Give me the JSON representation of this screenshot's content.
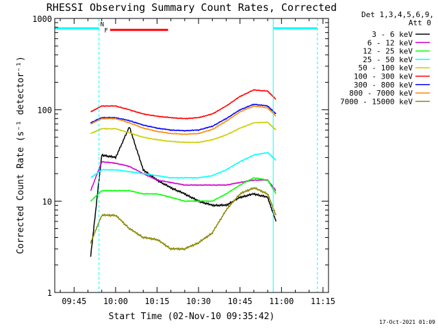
{
  "chart_data": {
    "type": "line",
    "title": "RHESSI Observing Summary Count Rates, Corrected",
    "xlabel": "Start Time (02-Nov-10 09:35:42)",
    "ylabel": "Corrected Count Rate (s⁻¹ detector⁻¹)",
    "y_scale": "log",
    "xlim": [
      "09:38:00",
      "11:17:00"
    ],
    "ylim": [
      1,
      1000
    ],
    "x_ticks": [
      "09:45",
      "10:00",
      "10:15",
      "10:30",
      "10:45",
      "11:00",
      "11:15"
    ],
    "y_ticks": [
      {
        "value": 1,
        "label": "1"
      },
      {
        "value": 10,
        "label": "10"
      },
      {
        "value": 100,
        "label": "100"
      },
      {
        "value": 1000,
        "label": "1000"
      }
    ],
    "legend_header": [
      "Det 1,3,4,5,6,9,",
      "Att 0"
    ],
    "legend_placement": "right",
    "x": [
      "09:51",
      "09:55",
      "10:00",
      "10:05",
      "10:10",
      "10:15",
      "10:20",
      "10:25",
      "10:30",
      "10:35",
      "10:40",
      "10:45",
      "10:50",
      "10:55",
      "10:58"
    ],
    "series": [
      {
        "name": "3 - 6 keV",
        "color": "#000000",
        "values": [
          2.5,
          32,
          30,
          65,
          22,
          17,
          14,
          12,
          10,
          9,
          9,
          11,
          12,
          11,
          6
        ]
      },
      {
        "name": "6 - 12 keV",
        "color": "#cc00cc",
        "values": [
          13,
          27,
          26,
          24,
          20,
          17,
          16,
          15,
          15,
          15,
          15,
          16,
          17,
          17,
          13
        ]
      },
      {
        "name": "12 - 25 keV",
        "color": "#00ff00",
        "values": [
          10,
          13,
          13,
          13,
          12,
          12,
          11,
          10,
          10,
          10,
          12,
          15,
          18,
          17,
          12
        ]
      },
      {
        "name": "25 - 50 keV",
        "color": "#00ffff",
        "values": [
          18,
          22,
          22,
          21,
          20,
          19,
          18,
          18,
          18,
          19,
          22,
          27,
          32,
          34,
          28
        ]
      },
      {
        "name": "50 - 100 keV",
        "color": "#cccc00",
        "values": [
          55,
          62,
          62,
          56,
          50,
          47,
          45,
          44,
          44,
          47,
          53,
          63,
          72,
          73,
          60
        ]
      },
      {
        "name": "100 - 300 keV",
        "color": "#ff0000",
        "values": [
          95,
          110,
          110,
          100,
          90,
          85,
          82,
          80,
          82,
          90,
          110,
          140,
          165,
          160,
          130
        ]
      },
      {
        "name": "300 - 800 keV",
        "color": "#0000ff",
        "values": [
          72,
          82,
          82,
          76,
          68,
          63,
          60,
          59,
          60,
          66,
          80,
          100,
          115,
          110,
          90
        ]
      },
      {
        "name": "800 - 7000 keV",
        "color": "#ff8800",
        "values": [
          70,
          80,
          80,
          72,
          63,
          58,
          55,
          54,
          55,
          61,
          75,
          95,
          110,
          105,
          85
        ]
      },
      {
        "name": "7000 - 15000 keV",
        "color": "#888800",
        "values": [
          3.5,
          7,
          7,
          5,
          4,
          3.8,
          3,
          3,
          3.5,
          4.5,
          8,
          12,
          14,
          12,
          7
        ]
      }
    ],
    "annotations": [
      {
        "label": "F",
        "color": "#ff0000",
        "x_start": "09:58",
        "x_end": "10:19",
        "value": 750
      },
      {
        "label": "N",
        "color": "#00ffff",
        "x_start": "09:38",
        "x_end": "09:54",
        "value": 780
      },
      {
        "label": "",
        "color": "#00ffff",
        "x_start": "10:57",
        "x_end": "11:13",
        "value": 780
      }
    ],
    "vlines": [
      {
        "x": "09:38",
        "color": "#00ffff",
        "style": "solid"
      },
      {
        "x": "09:54",
        "color": "#00ffff",
        "style": "dashed"
      },
      {
        "x": "10:57",
        "color": "#00ffff",
        "style": "solid"
      },
      {
        "x": "11:13",
        "color": "#00ffff",
        "style": "dashed"
      }
    ]
  },
  "footer": {
    "timestamp": "17-Oct-2021 01:09"
  }
}
